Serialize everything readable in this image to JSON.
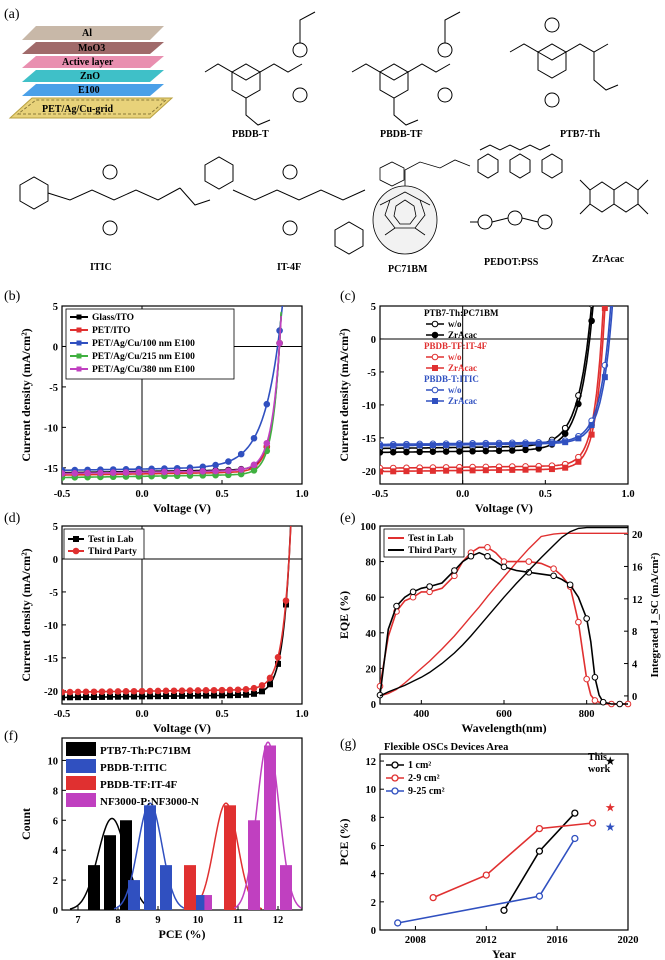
{
  "figure": {
    "panel_a": {
      "label": "(a)",
      "stack_layers": [
        "Al",
        "MoO3",
        "Active layer",
        "ZnO",
        "E100",
        "PET/Ag/Cu-grid"
      ],
      "stack_colors": [
        "#c8b8a8",
        "#a06a6a",
        "#e98fb0",
        "#3fc0c8",
        "#4aa0e8",
        "#e8d27a"
      ],
      "molecules_row1": [
        "PBDB-T",
        "PBDB-TF",
        "PTB7-Th"
      ],
      "molecules_row2": [
        "ITIC",
        "IT-4F",
        "PC71BM",
        "PEDOT:PSS",
        "ZrAcac"
      ]
    }
  },
  "chart_data": [
    {
      "id": "b",
      "label": "(b)",
      "type": "line",
      "xlabel": "Voltage (V)",
      "ylabel": "Current density (mA/cm²)",
      "xlim": [
        -0.5,
        1.0
      ],
      "ylim": [
        -17,
        5
      ],
      "xticks": [
        -0.5,
        0.0,
        0.5,
        1.0
      ],
      "xtick_labels": [
        "-0.5",
        "0.0",
        "0.5",
        "1.0"
      ],
      "yticks": [
        -15,
        -10,
        -5,
        0,
        5
      ],
      "ytick_labels": [
        "-15",
        "-10",
        "-5",
        "0",
        "5"
      ],
      "legend": "top-left",
      "series": [
        {
          "name": "Glass/ITO",
          "color": "#000000",
          "jsc": 15.6,
          "voc": 0.86,
          "n": 1.8
        },
        {
          "name": "PET/ITO",
          "color": "#e03030",
          "jsc": 15.9,
          "voc": 0.86,
          "n": 1.9
        },
        {
          "name": "PET/Ag/Cu/100 nm E100",
          "color": "#3050c0",
          "jsc": 15.3,
          "voc": 0.85,
          "n": 4.0
        },
        {
          "name": "PET/Ag/Cu/215 nm E100",
          "color": "#40b040",
          "jsc": 16.2,
          "voc": 0.86,
          "n": 1.8
        },
        {
          "name": "PET/Ag/Cu/380 nm E100",
          "color": "#c040c0",
          "jsc": 15.7,
          "voc": 0.86,
          "n": 2.0
        }
      ]
    },
    {
      "id": "c",
      "label": "(c)",
      "type": "line",
      "xlabel": "Voltage (V)",
      "ylabel": "Current density (mA/cm²)",
      "xlim": [
        -0.5,
        1.0
      ],
      "ylim": [
        -22,
        5
      ],
      "xticks": [
        -0.5,
        0.0,
        0.5,
        1.0
      ],
      "xtick_labels": [
        "-0.5",
        "0.0",
        "0.5",
        "1.0"
      ],
      "yticks": [
        -20,
        -15,
        -10,
        -5,
        0,
        5
      ],
      "ytick_labels": [
        "-20",
        "-15",
        "-10",
        "-5",
        "0",
        "5"
      ],
      "legend_groups": [
        {
          "title": "PTB7-Th:PC71BM",
          "title_color": "#000000",
          "items": [
            "w/o",
            "ZrAcac"
          ]
        },
        {
          "title": "PBDB-TF:IT-4F",
          "title_color": "#e03030",
          "items": [
            "w/o",
            "ZrAcac"
          ]
        },
        {
          "title": "PBDB-T:ITIC",
          "title_color": "#3050c0",
          "items": [
            "w/o",
            "ZrAcac"
          ]
        }
      ],
      "series": [
        {
          "name": "PTB7-Th:PC71BM w/o",
          "color": "#000000",
          "jsc": 16.6,
          "voc": 0.76,
          "n": 3.0,
          "marker": "open"
        },
        {
          "name": "PTB7-Th:PC71BM ZrAcac",
          "color": "#000000",
          "jsc": 17.2,
          "voc": 0.77,
          "n": 3.0,
          "marker": "filled"
        },
        {
          "name": "PBDB-TF:IT-4F w/o",
          "color": "#e03030",
          "jsc": 19.6,
          "voc": 0.84,
          "n": 2.0,
          "marker": "open"
        },
        {
          "name": "PBDB-TF:IT-4F ZrAcac",
          "color": "#e03030",
          "jsc": 20.1,
          "voc": 0.85,
          "n": 2.0,
          "marker": "square"
        },
        {
          "name": "PBDB-T:ITIC w/o",
          "color": "#3050c0",
          "jsc": 16.0,
          "voc": 0.88,
          "n": 2.4,
          "marker": "open"
        },
        {
          "name": "PBDB-T:ITIC ZrAcac",
          "color": "#3050c0",
          "jsc": 16.2,
          "voc": 0.89,
          "n": 2.4,
          "marker": "square"
        }
      ]
    },
    {
      "id": "d",
      "label": "(d)",
      "type": "line",
      "xlabel": "Voltage (V)",
      "ylabel": "Current density (mA/cm²)",
      "xlim": [
        -0.5,
        1.0
      ],
      "ylim": [
        -22,
        5
      ],
      "xticks": [
        -0.5,
        0.0,
        0.5,
        1.0
      ],
      "xtick_labels": [
        "-0.5",
        "0.0",
        "0.5",
        "1.0"
      ],
      "yticks": [
        -20,
        -15,
        -10,
        -5,
        0,
        5
      ],
      "ytick_labels": [
        "-20",
        "-15",
        "-10",
        "-5",
        "0",
        "5"
      ],
      "legend": "top-left",
      "series": [
        {
          "name": "Test in Lab",
          "color": "#000000",
          "jsc": 21.0,
          "voc": 0.92,
          "n": 1.8,
          "marker": "square"
        },
        {
          "name": "Third Party",
          "color": "#e03030",
          "jsc": 20.2,
          "voc": 0.92,
          "n": 1.9,
          "marker": "circle"
        }
      ]
    },
    {
      "id": "e",
      "label": "(e)",
      "type": "line",
      "xlabel": "Wavelength(nm)",
      "ylabel": "EQE (%)",
      "y2label": "Integrated J_SC (mA/cm²)",
      "xlim": [
        300,
        900
      ],
      "ylim": [
        0,
        100
      ],
      "y2lim": [
        -1,
        21
      ],
      "xticks": [
        400,
        600,
        800
      ],
      "xtick_labels": [
        "400",
        "600",
        "800"
      ],
      "yticks": [
        0,
        20,
        40,
        60,
        80,
        100
      ],
      "ytick_labels": [
        "0",
        "20",
        "40",
        "60",
        "80",
        "100"
      ],
      "y2ticks": [
        0,
        4,
        8,
        12,
        16,
        20
      ],
      "y2tick_labels": [
        "0",
        "4",
        "8",
        "12",
        "16",
        "20"
      ],
      "legend": "top-left",
      "series": [
        {
          "name": "Test in Lab",
          "color": "#e03030",
          "x": [
            300,
            320,
            340,
            360,
            380,
            400,
            420,
            450,
            480,
            500,
            520,
            540,
            560,
            580,
            600,
            630,
            660,
            690,
            720,
            740,
            760,
            770,
            780,
            790,
            800,
            810,
            820,
            840,
            860,
            880,
            900
          ],
          "y": [
            10,
            38,
            52,
            58,
            60,
            63,
            63,
            65,
            72,
            80,
            85,
            88,
            88,
            85,
            80,
            80,
            80,
            79,
            76,
            72,
            66,
            56,
            46,
            30,
            14,
            5,
            2,
            0,
            0,
            0,
            0
          ],
          "integrated_jsc": [
            0,
            0.3,
            0.8,
            1.6,
            2.5,
            3.4,
            4.3,
            5.8,
            7.4,
            8.6,
            9.8,
            11.0,
            12.3,
            13.5,
            14.7,
            16.5,
            18.2,
            19.7,
            20.0,
            20.1,
            20.1,
            20.1,
            20.1,
            20.1,
            20.1,
            20.1,
            20.1,
            20.1,
            20.1,
            20.1,
            20.1
          ]
        },
        {
          "name": "Third Party",
          "color": "#000000",
          "x": [
            300,
            320,
            340,
            360,
            380,
            400,
            420,
            450,
            480,
            500,
            520,
            540,
            560,
            580,
            600,
            630,
            660,
            690,
            720,
            740,
            760,
            780,
            800,
            810,
            820,
            830,
            840,
            860,
            880,
            900
          ],
          "y": [
            5,
            42,
            55,
            60,
            63,
            65,
            66,
            68,
            75,
            80,
            83,
            85,
            83,
            80,
            77,
            75,
            74,
            73,
            72,
            70,
            67,
            60,
            48,
            35,
            15,
            5,
            1,
            0,
            0,
            0
          ],
          "integrated_jsc": [
            0,
            0.5,
            0.9,
            1.3,
            1.8,
            2.3,
            2.9,
            4.0,
            5.3,
            6.3,
            7.4,
            8.6,
            9.8,
            11.0,
            12.2,
            13.9,
            15.5,
            17.1,
            18.6,
            19.6,
            20.3,
            20.7,
            20.8,
            20.8,
            20.8,
            20.8,
            20.8,
            20.8,
            20.8,
            20.8
          ]
        }
      ]
    },
    {
      "id": "f",
      "label": "(f)",
      "type": "bar",
      "xlabel": "PCE (%)",
      "ylabel": "Count",
      "xlim": [
        6.6,
        12.6
      ],
      "ylim": [
        0,
        11.5
      ],
      "xticks": [
        7,
        8,
        9,
        10,
        11,
        12
      ],
      "xtick_labels": [
        "7",
        "8",
        "9",
        "10",
        "11",
        "12"
      ],
      "yticks": [
        0,
        2,
        4,
        6,
        8,
        10
      ],
      "ytick_labels": [
        "0",
        "2",
        "4",
        "6",
        "8",
        "10"
      ],
      "legend": "top-left",
      "series": [
        {
          "name": "PTB7-Th:PC71BM",
          "color": "#000000",
          "bins": [
            7.4,
            7.8,
            8.2
          ],
          "counts": [
            3,
            5,
            6
          ],
          "mean": 7.85,
          "sd": 0.35
        },
        {
          "name": "PBDB-T:ITIC",
          "color": "#3050c0",
          "bins": [
            8.4,
            8.8,
            9.2
          ],
          "counts": [
            2,
            7,
            3
          ],
          "mean": 8.8,
          "sd": 0.3
        },
        {
          "name": "PBDB-TF:IT-4F",
          "color": "#e03030",
          "bins": [
            9.8,
            10.8
          ],
          "counts": [
            3,
            7
          ],
          "mean": 10.7,
          "sd": 0.3
        },
        {
          "name": "NF3000-P:NF3000-N",
          "color": "#c040c0",
          "bins": [
            10.2,
            11.4,
            11.8,
            12.2
          ],
          "counts": [
            1,
            6,
            11,
            3
          ],
          "mean": 11.75,
          "sd": 0.28
        }
      ],
      "extra_bars": [
        {
          "series": 1,
          "x": 9.8,
          "count": 1
        }
      ]
    },
    {
      "id": "g",
      "label": "(g)",
      "type": "line",
      "title": "Flexible OSCs Devices Area",
      "xlabel": "Year",
      "ylabel": "PCE (%)",
      "xlim": [
        2006,
        2020
      ],
      "ylim": [
        0,
        12.5
      ],
      "xticks": [
        2008,
        2012,
        2016,
        2020
      ],
      "xtick_labels": [
        "2008",
        "2012",
        "2016",
        "2020"
      ],
      "yticks": [
        0,
        2,
        4,
        6,
        8,
        10,
        12
      ],
      "ytick_labels": [
        "0",
        "2",
        "4",
        "6",
        "8",
        "10",
        "12"
      ],
      "legend": "top-left",
      "series": [
        {
          "name": "1 cm²",
          "color": "#000000",
          "x": [
            2013,
            2015,
            2017
          ],
          "y": [
            1.4,
            5.6,
            8.3
          ]
        },
        {
          "name": "2-9 cm²",
          "color": "#e03030",
          "x": [
            2009,
            2012,
            2015,
            2018
          ],
          "y": [
            2.3,
            3.9,
            7.2,
            7.6
          ]
        },
        {
          "name": "9-25 cm²",
          "color": "#3050c0",
          "x": [
            2007,
            2015,
            2017
          ],
          "y": [
            0.5,
            2.4,
            6.5
          ]
        }
      ],
      "this_work_label": [
        "This",
        "work"
      ],
      "this_work_points": [
        {
          "color": "#000000",
          "x": 2019,
          "y": 12.0
        },
        {
          "color": "#e03030",
          "x": 2019,
          "y": 8.7
        },
        {
          "color": "#3050c0",
          "x": 2019,
          "y": 7.3
        }
      ]
    }
  ]
}
